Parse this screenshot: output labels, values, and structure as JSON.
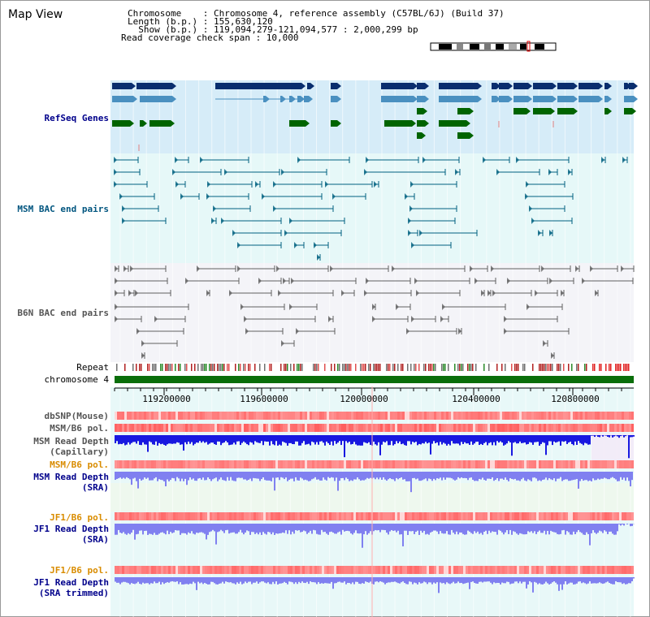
{
  "header": {
    "title": "Map View",
    "chromosome_line": "Chromosome    : Chromosome 4, reference assembly (C57BL/6J) (Build 37)",
    "length_line": "Length (b.p.) : 155,630,120",
    "show_line": "  Show (b.p.) : 119,094,279-121,094,577 : 2,000,299 bp",
    "coverage_line": "Read coverage check span : 10,000"
  },
  "tracks": {
    "refseq": "RefSeq Genes",
    "msm_bac": "MSM BAC end pairs",
    "b6n_bac": "B6N BAC end pairs",
    "repeat": "Repeat",
    "chromosome": "chromosome 4",
    "dbsnp": "dbSNP(Mouse)",
    "msm_b6_pol_1": "MSM/B6 pol.",
    "msm_read_depth_cap": "MSM Read Depth\n(Capillary)",
    "msm_b6_pol_2": "MSM/B6 pol.",
    "msm_read_depth_sra": "MSM Read Depth\n(SRA)",
    "jf1_b6_pol_1": "JF1/B6 pol.",
    "jf1_read_depth_sra": "JF1 Read Depth\n(SRA)",
    "jf1_b6_pol_2": "JF1/B6 pol.",
    "jf1_read_depth_trim": "JF1 Read Depth\n(SRA trimmed)"
  },
  "axis": {
    "ticks": [
      "119200000",
      "119600000",
      "120000000",
      "120400000",
      "120800000"
    ]
  },
  "colors": {
    "gene_dark": "#0a2e6e",
    "gene_mid": "#4a90c0",
    "gene_green": "#006400",
    "refseq_bg": "#d6ecf8",
    "msm_bac_bg": "#e6f8f8",
    "msm_bac_line": "#006080",
    "b6n_line": "#606060",
    "chromosome": "#0a6e0a",
    "depth_blue": "#1a1ae0",
    "depth_light": "#8080f0",
    "pol_red": "#f05050"
  }
}
